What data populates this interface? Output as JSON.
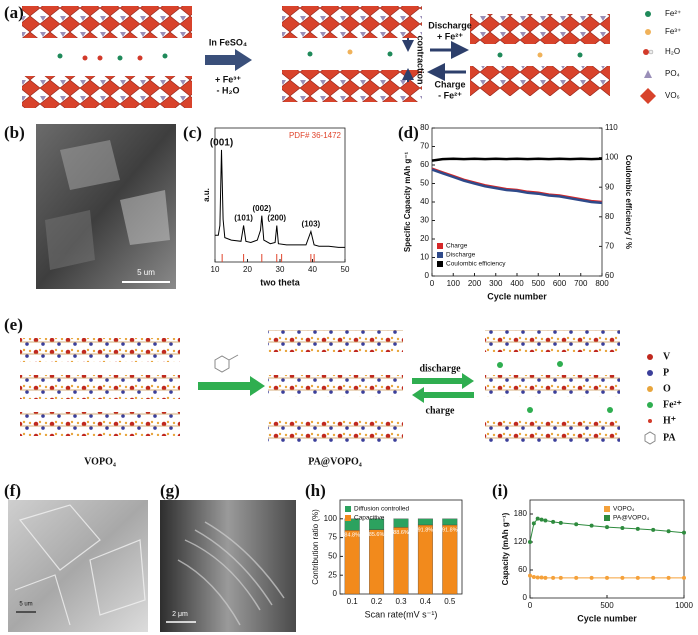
{
  "panels": {
    "a": {
      "label": "(a)",
      "step_top": "In FeSO₄",
      "step_bottom_1": "+ Fe³⁺",
      "step_bottom_2": "- H₂O",
      "discharge_1": "Discharge",
      "discharge_2": "+ Fe²⁺",
      "middle": "contraction",
      "charge_1": "Charge",
      "charge_2": "- Fe²⁺",
      "legend": [
        "Fe²⁺",
        "Fe³⁺",
        "H₂O",
        "PO₄",
        "VO₆"
      ]
    },
    "b": {
      "label": "(b)",
      "scale": "5 um"
    },
    "e": {
      "label": "(e)",
      "left": "VOPO₄",
      "middle": "PA@VOPO₄",
      "discharge": "discharge",
      "charge": "charge",
      "legend": [
        "V",
        "P",
        "O",
        "Fe²⁺",
        "H⁺",
        "PA"
      ]
    },
    "f": {
      "label": "(f)",
      "scale": "5 um"
    },
    "g": {
      "label": "(g)",
      "scale": "2 μm"
    }
  },
  "chart_data": [
    {
      "type": "line",
      "label": "(c)",
      "annotation": "PDF# 36-1472",
      "xlabel": "two theta",
      "ylabel": "a.u.",
      "x": [
        10,
        11,
        11.5,
        12,
        12.5,
        13,
        15,
        18,
        18.8,
        19.5,
        21,
        23,
        24,
        24.4,
        25,
        27,
        28.5,
        29,
        29.5,
        32,
        35,
        38,
        39.5,
        40.5,
        42,
        45,
        48,
        50
      ],
      "series": [
        {
          "color": "#000000",
          "values": [
            22,
            22,
            30,
            92,
            35,
            20,
            18,
            17,
            30,
            17,
            16,
            18,
            26,
            38,
            18,
            15,
            16,
            30,
            15,
            14,
            14,
            14,
            25,
            14,
            13,
            13,
            12,
            12
          ]
        }
      ],
      "xlim": [
        10,
        50
      ],
      "xticks": [
        10,
        20,
        30,
        40,
        50
      ],
      "ylim": [
        0,
        110
      ],
      "peaks": [
        {
          "x": 12,
          "label": "(001)"
        },
        {
          "x": 18.8,
          "label": "(101)"
        },
        {
          "x": 24.4,
          "label": "(002)"
        },
        {
          "x": 29,
          "label": "(200)"
        },
        {
          "x": 39.5,
          "label": "(103)"
        }
      ],
      "reference_peaks": [
        12.2,
        18.8,
        24.4,
        29,
        30.5,
        39.5,
        40.5
      ],
      "reference_color": "#e0452c"
    },
    {
      "type": "line",
      "label": "(d)",
      "xlabel": "Cycle number",
      "ylabel": "Specific Capacity mAh g⁻¹",
      "y2label": "Coulombic efficiency / %",
      "x": [
        0,
        50,
        100,
        150,
        200,
        250,
        300,
        350,
        400,
        450,
        500,
        550,
        600,
        650,
        700,
        750,
        800
      ],
      "series": [
        {
          "name": "Charge",
          "color": "#d62728",
          "values": [
            58,
            56,
            54,
            52,
            50.5,
            49,
            48,
            47,
            46.5,
            45.5,
            45,
            44,
            43.5,
            42.5,
            41.5,
            40.5,
            40
          ]
        },
        {
          "name": "Discharge",
          "color": "#2f4a8a",
          "values": [
            57.5,
            55.5,
            53.5,
            51.5,
            50,
            48.5,
            47.5,
            46.5,
            46,
            45,
            44.5,
            43.5,
            43,
            42,
            41,
            40,
            39.5
          ]
        },
        {
          "name": "Coulombic efficiency",
          "color": "#000000",
          "axis": "y2",
          "values": [
            99,
            99.5,
            99.6,
            99.5,
            99.6,
            99.5,
            99.6,
            99.5,
            99.6,
            99.5,
            99.6,
            99.5,
            99.6,
            99.5,
            99.6,
            99.5,
            99.6
          ]
        }
      ],
      "xlim": [
        0,
        800
      ],
      "xticks": [
        0,
        100,
        200,
        300,
        400,
        500,
        600,
        700,
        800
      ],
      "ylim": [
        0,
        80
      ],
      "yticks": [
        0,
        10,
        20,
        30,
        40,
        50,
        60,
        70,
        80
      ],
      "y2lim": [
        60,
        110
      ],
      "y2ticks": [
        60,
        70,
        80,
        90,
        100,
        110
      ],
      "legend": "lower left"
    },
    {
      "type": "bar",
      "label": "(h)",
      "stacked": true,
      "xlabel": "Scan rate(mV s⁻¹)",
      "ylabel": "Contribution ratio (%)",
      "categories": [
        "0.1",
        "0.2",
        "0.3",
        "0.4",
        "0.5"
      ],
      "series": [
        {
          "name": "Capacitive",
          "color": "#f28a1c",
          "values": [
            84.8,
            85.6,
            88.6,
            91.8,
            91.8
          ],
          "value_labels": [
            "84.8%",
            "85.6%",
            "88.6%",
            "91.8%",
            "91.8%"
          ]
        },
        {
          "name": "Diffusion controlled",
          "color": "#2ca25f",
          "values": [
            15.2,
            14.4,
            11.4,
            8.2,
            8.2
          ]
        }
      ],
      "ylim": [
        0,
        125
      ],
      "yticks": [
        0,
        25,
        50,
        75,
        100
      ],
      "legend": "upper left"
    },
    {
      "type": "line",
      "label": "(i)",
      "xlabel": "Cycle number",
      "ylabel": "Capacity (mAh g⁻¹)",
      "markers": true,
      "x": [
        0,
        25,
        50,
        75,
        100,
        150,
        200,
        300,
        400,
        500,
        600,
        700,
        800,
        900,
        1000
      ],
      "series": [
        {
          "name": "VOPO₄",
          "color": "#f5a13a",
          "values": [
            48,
            45,
            44,
            44,
            43,
            43,
            43,
            43,
            43,
            43,
            43,
            43,
            43,
            43,
            43
          ]
        },
        {
          "name": "PA@VOPO₄",
          "color": "#2e8b3e",
          "values": [
            120,
            160,
            170,
            168,
            166,
            163,
            161,
            158,
            155,
            152,
            150,
            148,
            146,
            143,
            140
          ]
        }
      ],
      "xlim": [
        0,
        1000
      ],
      "xticks": [
        0,
        500,
        1000
      ],
      "ylim": [
        0,
        210
      ],
      "yticks": [
        0,
        60,
        120,
        180
      ],
      "legend": "upper right"
    }
  ]
}
